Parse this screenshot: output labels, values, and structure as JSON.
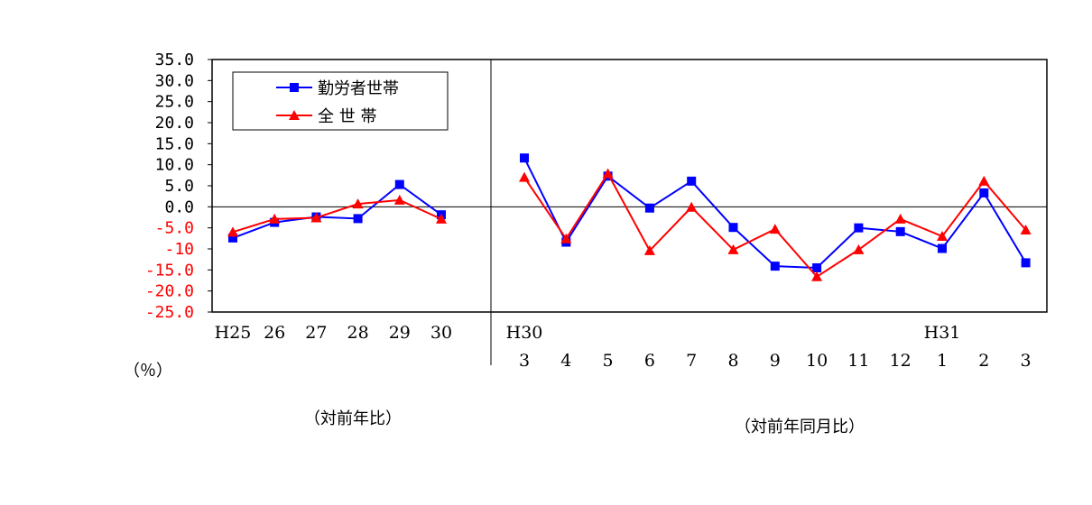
{
  "chart_data": {
    "type": "line",
    "y_unit": "（％）",
    "ylim": [
      -25.0,
      35.0
    ],
    "yticks": [
      "35.0",
      "30.0",
      "25.0",
      "20.0",
      "15.0",
      "10.0",
      "5.0",
      "0.0",
      "-5.0",
      "-10",
      "-15.0",
      "-20.0",
      "-25.0"
    ],
    "ytick_colors": [
      "#000000",
      "#000000",
      "#000000",
      "#000000",
      "#000000",
      "#000000",
      "#000000",
      "#000000",
      "#ff0000",
      "#ff0000",
      "#ff0000",
      "#ff0000",
      "#ff0000"
    ],
    "annual": {
      "caption": "（対前年比）",
      "categories": [
        "H25",
        "26",
        "27",
        "28",
        "29",
        "30"
      ]
    },
    "monthly": {
      "caption": "（対前年同月比）",
      "year_labels": [
        "H30",
        "",
        "",
        "",
        "",
        "",
        "",
        "",
        "",
        "",
        "H31",
        "",
        ""
      ],
      "categories": [
        "3",
        "4",
        "5",
        "6",
        "7",
        "8",
        "9",
        "10",
        "11",
        "12",
        "1",
        "2",
        "3"
      ]
    },
    "series": [
      {
        "name": "勤労者世帯",
        "color": "#0000ff",
        "marker": "square",
        "annual": [
          -7.4,
          -3.7,
          -2.4,
          -2.8,
          5.3,
          -1.9
        ],
        "monthly": [
          11.6,
          -8.4,
          7.3,
          -0.3,
          6.1,
          -4.9,
          -14.1,
          -14.5,
          -5.0,
          -5.9,
          -9.9,
          3.3,
          -13.3
        ]
      },
      {
        "name": "全 世 帯",
        "color": "#ff0000",
        "marker": "triangle",
        "annual": [
          -6.0,
          -2.9,
          -2.6,
          0.7,
          1.6,
          -2.9
        ],
        "monthly": [
          7.0,
          -7.6,
          7.9,
          -10.4,
          -0.1,
          -10.2,
          -5.3,
          -16.6,
          -10.2,
          -2.9,
          -7.0,
          6.1,
          -5.5
        ]
      }
    ]
  }
}
